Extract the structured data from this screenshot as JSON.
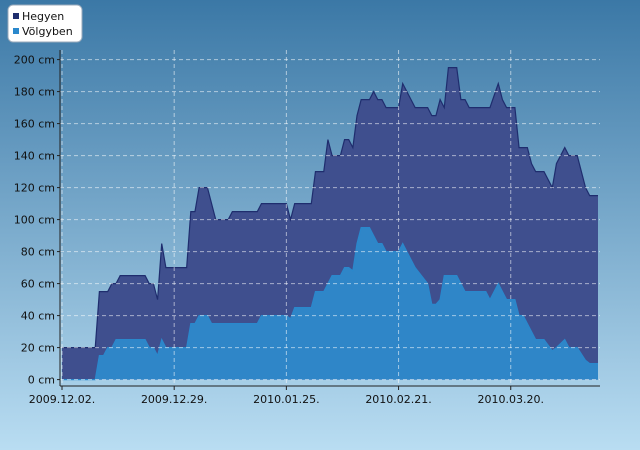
{
  "chart_data": {
    "type": "area",
    "x": [
      "2009.12.02.",
      "2009.12.10.",
      "2009.12.11.",
      "2009.12.12.",
      "2009.12.13.",
      "2009.12.14.",
      "2009.12.15.",
      "2009.12.16.",
      "2009.12.22.",
      "2009.12.23.",
      "2009.12.24.",
      "2009.12.25.",
      "2009.12.26.",
      "2009.12.27.",
      "2010.01.01.",
      "2010.01.02.",
      "2010.01.03.",
      "2010.01.04.",
      "2010.01.06.",
      "2010.01.07.",
      "2010.01.08.",
      "2010.01.11.",
      "2010.01.12.",
      "2010.01.18.",
      "2010.01.19.",
      "2010.01.25.",
      "2010.01.26.",
      "2010.01.27.",
      "2010.01.31.",
      "2010.02.01.",
      "2010.02.03.",
      "2010.02.04.",
      "2010.02.05.",
      "2010.02.07.",
      "2010.02.08.",
      "2010.02.09.",
      "2010.02.10.",
      "2010.02.11.",
      "2010.02.12.",
      "2010.02.14.",
      "2010.02.15.",
      "2010.02.16.",
      "2010.02.17.",
      "2010.02.18.",
      "2010.02.21.",
      "2010.02.22.",
      "2010.02.23.",
      "2010.02.24.",
      "2010.02.25.",
      "2010.02.28.",
      "2010.03.01.",
      "2010.03.02.",
      "2010.03.03.",
      "2010.03.04.",
      "2010.03.05.",
      "2010.03.07.",
      "2010.03.08.",
      "2010.03.09.",
      "2010.03.10.",
      "2010.03.14.",
      "2010.03.15.",
      "2010.03.17.",
      "2010.03.18.",
      "2010.03.19.",
      "2010.03.21.",
      "2010.03.22.",
      "2010.03.23.",
      "2010.03.24.",
      "2010.03.25.",
      "2010.03.26.",
      "2010.03.28.",
      "2010.03.30.",
      "2010.03.31.",
      "2010.04.02.",
      "2010.04.03.",
      "2010.04.05.",
      "2010.04.07.",
      "2010.04.08.",
      "2010.04.10."
    ],
    "series": [
      {
        "name": "Hegyen",
        "color": "#1f2d6e",
        "fill": "#3f4f8e",
        "values": [
          20,
          20,
          55,
          55,
          55,
          60,
          60,
          65,
          65,
          60,
          60,
          50,
          85,
          70,
          70,
          105,
          105,
          120,
          120,
          110,
          100,
          100,
          105,
          105,
          110,
          110,
          100,
          110,
          110,
          130,
          130,
          150,
          140,
          140,
          150,
          150,
          145,
          165,
          175,
          175,
          180,
          175,
          175,
          170,
          170,
          185,
          180,
          175,
          170,
          170,
          165,
          165,
          175,
          170,
          195,
          195,
          175,
          175,
          170,
          170,
          170,
          185,
          175,
          170,
          170,
          145,
          145,
          145,
          135,
          130,
          130,
          120,
          135,
          145,
          140,
          140,
          120,
          115,
          115
        ]
      },
      {
        "name": "Völgyben",
        "color": "#2a88cc",
        "fill": "#2f86c8",
        "values": [
          0,
          0,
          15,
          15,
          20,
          20,
          25,
          25,
          25,
          20,
          20,
          15,
          25,
          20,
          20,
          35,
          35,
          40,
          40,
          35,
          35,
          35,
          35,
          35,
          40,
          40,
          38,
          45,
          45,
          55,
          55,
          60,
          65,
          65,
          70,
          70,
          68,
          85,
          95,
          95,
          90,
          85,
          85,
          80,
          80,
          85,
          80,
          75,
          70,
          60,
          47,
          47,
          50,
          65,
          65,
          65,
          60,
          55,
          55,
          55,
          50,
          60,
          55,
          50,
          50,
          40,
          40,
          35,
          30,
          25,
          25,
          18,
          20,
          25,
          20,
          20,
          12,
          10,
          10
        ]
      }
    ],
    "xlim": [
      "2009.12.02.",
      "2010.04.10."
    ],
    "xticks": [
      "2009.12.02.",
      "2009.12.29.",
      "2010.01.25.",
      "2010.02.21.",
      "2010.03.20."
    ],
    "ylim": [
      -4,
      206
    ],
    "yticks": [
      {
        "value": 0,
        "label": "0 cm"
      },
      {
        "value": 20,
        "label": "20 cm"
      },
      {
        "value": 40,
        "label": "40 cm"
      },
      {
        "value": 60,
        "label": "60 cm"
      },
      {
        "value": 80,
        "label": "80 cm"
      },
      {
        "value": 100,
        "label": "100 cm"
      },
      {
        "value": 120,
        "label": "120 cm"
      },
      {
        "value": 140,
        "label": "140 cm"
      },
      {
        "value": 160,
        "label": "160 cm"
      },
      {
        "value": 180,
        "label": "180 cm"
      },
      {
        "value": 200,
        "label": "200 cm"
      }
    ],
    "grid": true,
    "legend": "top-left"
  }
}
